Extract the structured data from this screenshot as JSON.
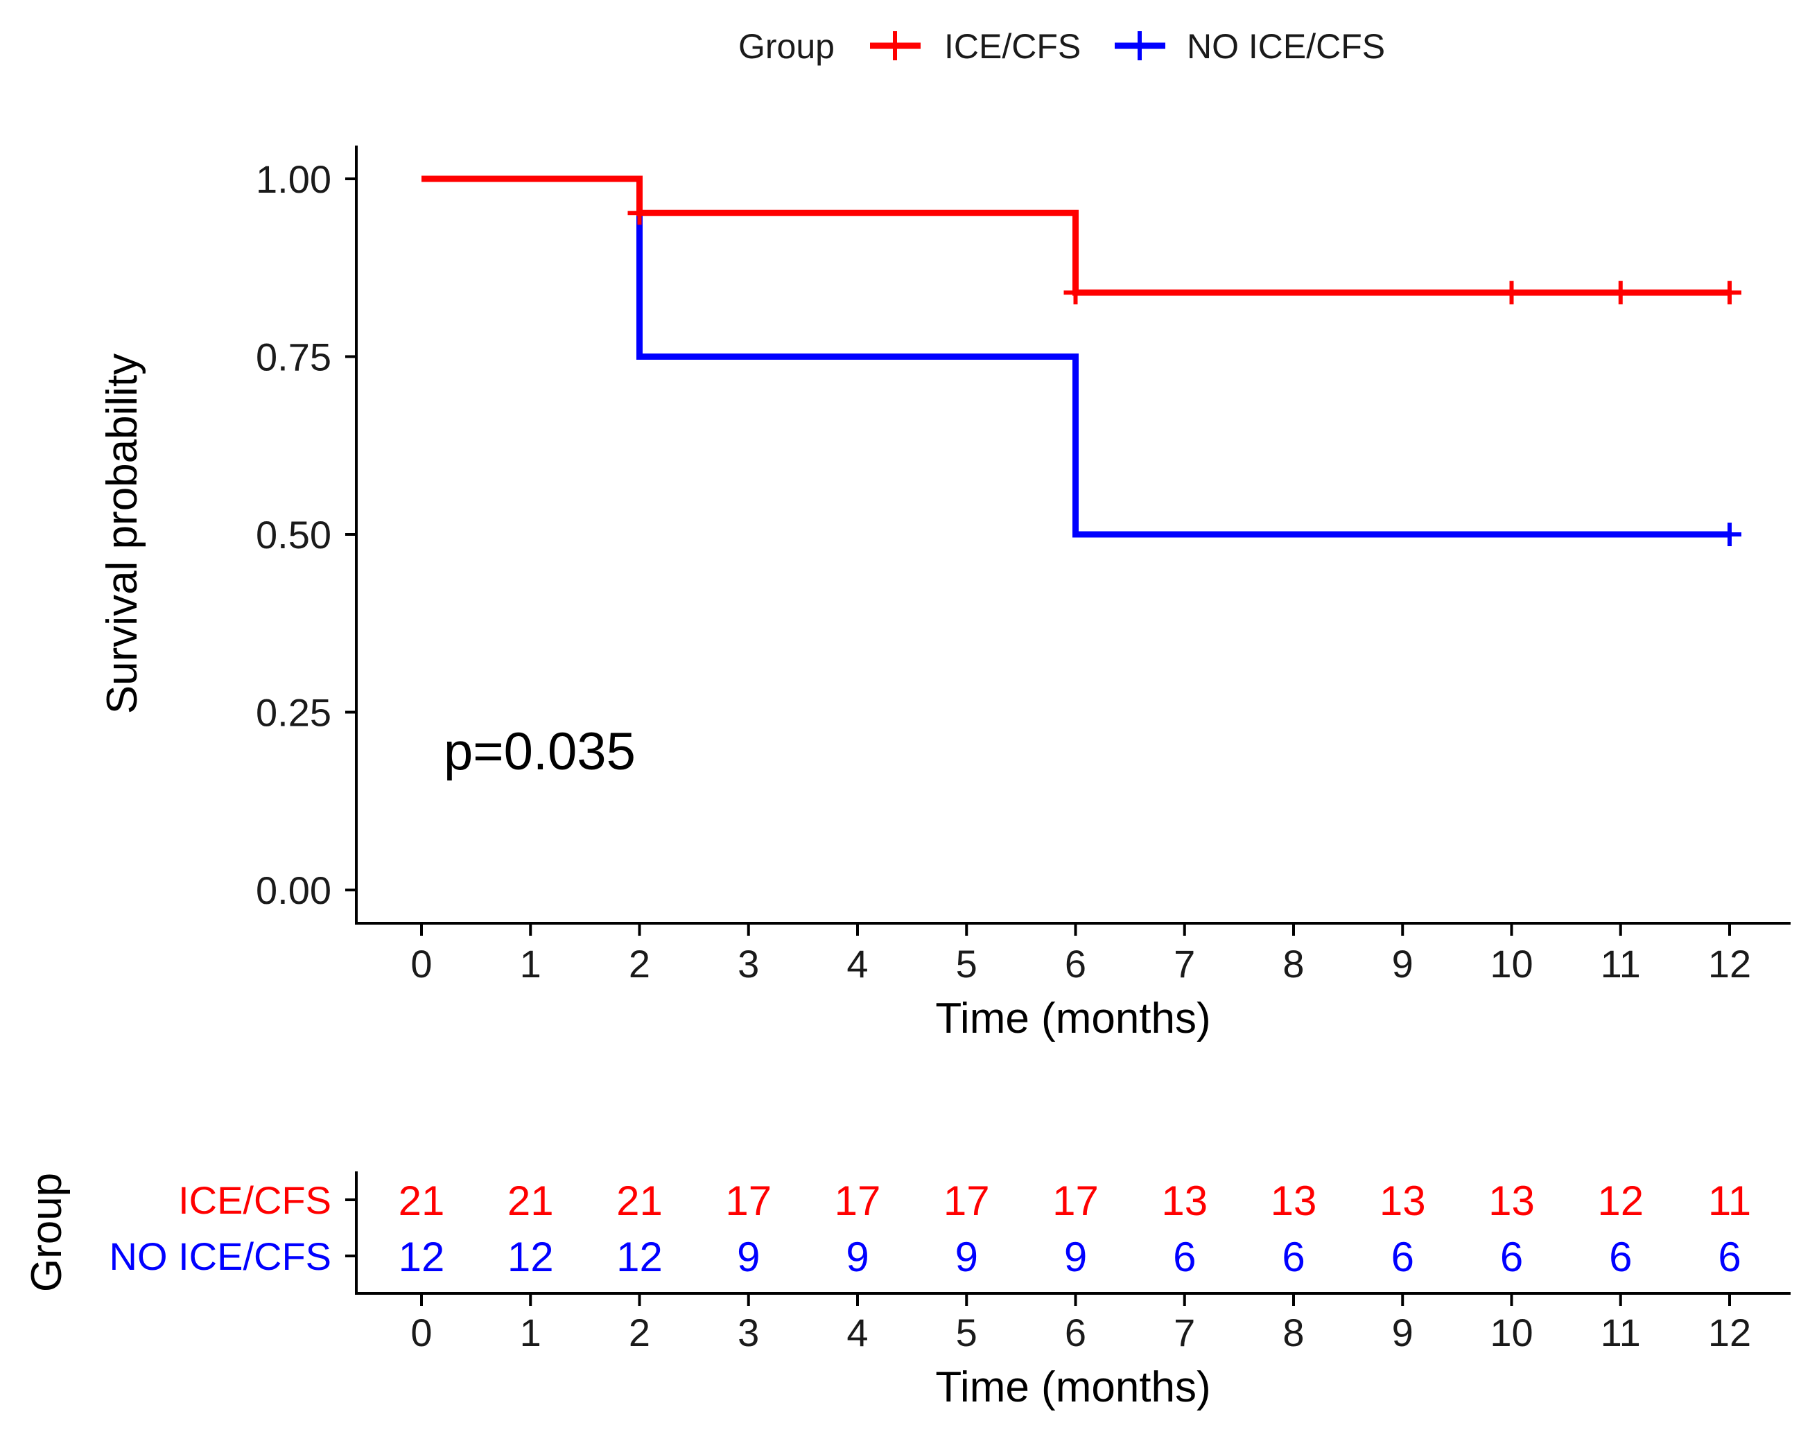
{
  "chart_data": [
    {
      "type": "line",
      "subtype": "kaplan-meier-step",
      "title": "",
      "xlabel": "Time (months)",
      "ylabel": "Survival probability",
      "xlim": [
        0,
        12
      ],
      "ylim": [
        0,
        1
      ],
      "x_ticks": [
        0,
        1,
        2,
        3,
        4,
        5,
        6,
        7,
        8,
        9,
        10,
        11,
        12
      ],
      "x_tick_labels": [
        "0",
        "1",
        "2",
        "3",
        "4",
        "5",
        "6",
        "7",
        "8",
        "9",
        "10",
        "11",
        "12"
      ],
      "y_ticks": [
        0,
        0.25,
        0.5,
        0.75,
        1
      ],
      "y_tick_labels": [
        "0.00",
        "0.25",
        "0.50",
        "0.75",
        "1.00"
      ],
      "grid": false,
      "legend": {
        "title": "Group",
        "placement": "top-center",
        "entries": [
          "ICE/CFS",
          "NO ICE/CFS"
        ]
      },
      "annotation": "p=0.035",
      "series": [
        {
          "name": "ICE/CFS",
          "color": "#ff0000",
          "steps": [
            {
              "x": 0,
              "y": 1.0
            },
            {
              "x": 2,
              "y": 0.952
            },
            {
              "x": 6,
              "y": 0.84
            }
          ],
          "end_x": 12,
          "censor_marks": [
            {
              "x": 2,
              "y": 0.952
            },
            {
              "x": 6,
              "y": 0.84
            },
            {
              "x": 10,
              "y": 0.84
            },
            {
              "x": 11,
              "y": 0.84
            },
            {
              "x": 12,
              "y": 0.84
            }
          ]
        },
        {
          "name": "NO ICE/CFS",
          "color": "#0000ff",
          "steps": [
            {
              "x": 0,
              "y": 1.0
            },
            {
              "x": 2,
              "y": 0.75
            },
            {
              "x": 6,
              "y": 0.5
            }
          ],
          "end_x": 12,
          "censor_marks": [
            {
              "x": 12,
              "y": 0.5
            }
          ]
        }
      ]
    },
    {
      "type": "table",
      "title": "",
      "xlabel": "Time (months)",
      "ylabel": "Group",
      "x": [
        0,
        1,
        2,
        3,
        4,
        5,
        6,
        7,
        8,
        9,
        10,
        11,
        12
      ],
      "x_tick_labels": [
        "0",
        "1",
        "2",
        "3",
        "4",
        "5",
        "6",
        "7",
        "8",
        "9",
        "10",
        "11",
        "12"
      ],
      "rows": [
        {
          "name": "ICE/CFS",
          "color": "#ff0000",
          "values": [
            "21",
            "21",
            "21",
            "17",
            "17",
            "17",
            "17",
            "13",
            "13",
            "13",
            "13",
            "12",
            "11"
          ]
        },
        {
          "name": "NO ICE/CFS",
          "color": "#0000ff",
          "values": [
            "12",
            "12",
            "12",
            "9",
            "9",
            "9",
            "9",
            "6",
            "6",
            "6",
            "6",
            "6",
            "6"
          ]
        }
      ]
    }
  ]
}
